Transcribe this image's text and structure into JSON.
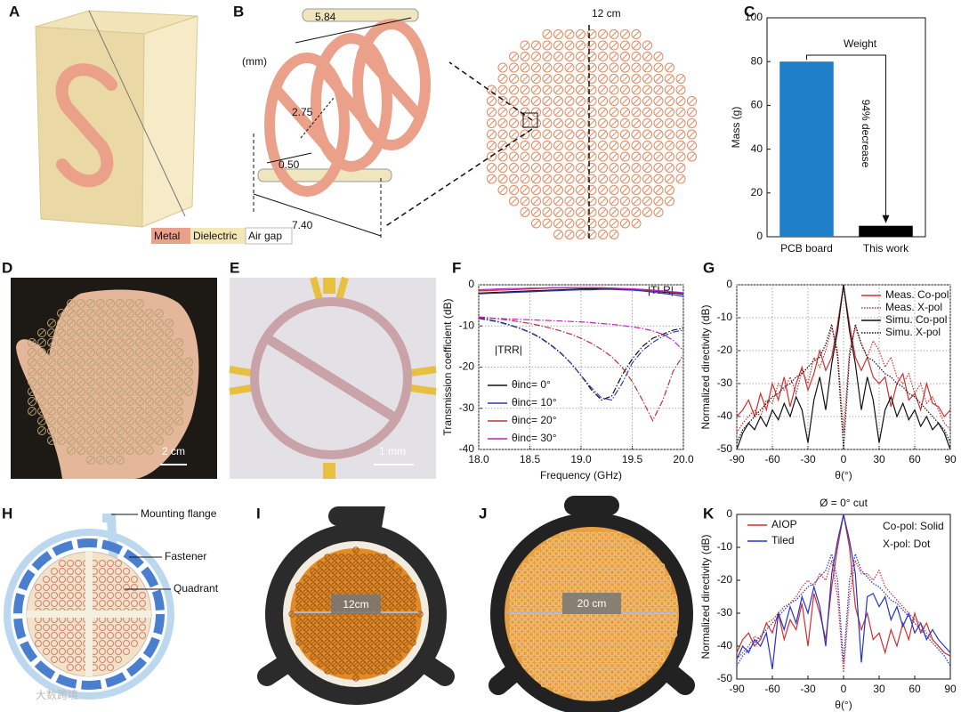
{
  "panel_labels": [
    "A",
    "B",
    "C",
    "D",
    "E",
    "F",
    "G",
    "H",
    "I",
    "J",
    "K"
  ],
  "panel_b": {
    "unit": "(mm)",
    "dims": [
      "5.84",
      "2.75",
      "0.50",
      "7.40"
    ]
  },
  "array_size": "12 cm",
  "materials": [
    "Metal",
    "Dielectric",
    "Air gap"
  ],
  "scale_bars": [
    "2 cm",
    "1 mm"
  ],
  "callouts": [
    "Mounting flange",
    "Fastener",
    "Quadrant"
  ],
  "photo_labels": [
    "12cm",
    "20 cm"
  ],
  "watermark": "大数跨境",
  "chart_data": [
    {
      "type": "bar",
      "categories": [
        "PCB board",
        "This work"
      ],
      "values": [
        80,
        5
      ],
      "colors": [
        "#1f7fc8",
        "#000000"
      ],
      "ylabel": "Mass (g)",
      "ylim": [
        0,
        100
      ],
      "yticks": [
        0,
        20,
        40,
        60,
        80,
        100
      ],
      "grid": false,
      "annotations": [
        "Weight",
        "94% decrease"
      ]
    },
    {
      "type": "line",
      "xlabel": "Frequency (GHz)",
      "ylabel": "Transmission coefficient (dB)",
      "x": [
        18,
        18.1,
        18.2,
        18.3,
        18.4,
        18.5,
        18.6,
        18.7,
        18.8,
        18.9,
        19,
        19.1,
        19.2,
        19.3,
        19.4,
        19.5,
        19.6,
        19.7,
        19.8,
        19.9,
        20
      ],
      "xlim": [
        18,
        20
      ],
      "xticks": [
        {
          "value": 18,
          "label": "18.0"
        },
        {
          "value": 18.5,
          "label": "18.5"
        },
        {
          "value": 19,
          "label": "19.0"
        },
        {
          "value": 19.5,
          "label": "19.5"
        },
        {
          "value": 20,
          "label": "20.0"
        }
      ],
      "ylim": [
        -40,
        0
      ],
      "yticks": [
        0,
        -10,
        -20,
        -30,
        -40
      ],
      "grid": true,
      "legend": "lower-left",
      "annotations": [
        "|TLR|",
        "|TRR|"
      ],
      "series": [
        {
          "name": "θinc= 0°",
          "color": "#111111",
          "style": "solid",
          "values": [
            -2.0,
            -1.9,
            -1.8,
            -1.7,
            -1.6,
            -1.5,
            -1.4,
            -1.3,
            -1.2,
            -1.1,
            -1.0,
            -1.0,
            -0.9,
            -0.9,
            -1.0,
            -1.1,
            -1.3,
            -1.5,
            -1.8,
            -2.0,
            -2.3
          ]
        },
        {
          "name": "θinc= 10°",
          "color": "#2a3bb0",
          "style": "solid",
          "values": [
            -2.2,
            -2.1,
            -2.0,
            -1.9,
            -1.8,
            -1.7,
            -1.6,
            -1.5,
            -1.4,
            -1.3,
            -1.2,
            -1.2,
            -1.1,
            -1.1,
            -1.2,
            -1.3,
            -1.5,
            -1.8,
            -2.1,
            -2.4,
            -2.8
          ]
        },
        {
          "name": "θinc= 20°",
          "color": "#c0303a",
          "style": "solid",
          "values": [
            -1.5,
            -1.4,
            -1.3,
            -1.2,
            -1.1,
            -1.0,
            -0.9,
            -0.8,
            -0.8,
            -0.7,
            -0.7,
            -0.7,
            -0.7,
            -0.8,
            -0.9,
            -1.0,
            -1.2,
            -1.4,
            -1.6,
            -1.8,
            -2.0
          ]
        },
        {
          "name": "θinc= 30°",
          "color": "#c020c0",
          "style": "solid",
          "values": [
            -1.2,
            -1.1,
            -1.0,
            -0.9,
            -0.9,
            -0.8,
            -0.8,
            -0.7,
            -0.7,
            -0.7,
            -0.7,
            -0.7,
            -0.8,
            -0.8,
            -0.9,
            -1.0,
            -1.1,
            -1.3,
            -1.5,
            -1.7,
            -1.9
          ]
        },
        {
          "color": "#111111",
          "style": "dashdot",
          "values": [
            -8,
            -8.5,
            -9,
            -9.7,
            -10.5,
            -11.5,
            -12.8,
            -14.5,
            -16.5,
            -19,
            -22,
            -25.5,
            -28,
            -27,
            -22,
            -18,
            -15,
            -13,
            -12,
            -11,
            -10.5
          ]
        },
        {
          "color": "#2a3bb0",
          "style": "dashdot",
          "values": [
            -8.2,
            -8.6,
            -9.1,
            -9.8,
            -10.6,
            -11.6,
            -12.9,
            -14.6,
            -16.6,
            -19,
            -22,
            -25,
            -27.5,
            -28,
            -24,
            -19,
            -16,
            -14,
            -12.5,
            -11.5,
            -11
          ]
        },
        {
          "color": "#c0303a",
          "style": "dashdot",
          "values": [
            -7.8,
            -8,
            -8.3,
            -8.6,
            -9,
            -9.4,
            -9.9,
            -10.5,
            -11.2,
            -12,
            -13,
            -14.2,
            -15.7,
            -17.5,
            -20,
            -23.5,
            -28,
            -33,
            -28,
            -21,
            -17
          ]
        },
        {
          "color": "#c020c0",
          "style": "dashdot",
          "values": [
            -8,
            -8.1,
            -8.2,
            -8.3,
            -8.4,
            -8.5,
            -8.6,
            -8.7,
            -8.8,
            -8.9,
            -9,
            -9.2,
            -9.4,
            -9.6,
            -9.9,
            -10.2,
            -10.6,
            -11.2,
            -12,
            -13.5,
            -16
          ]
        }
      ]
    },
    {
      "type": "line",
      "xlabel": "θ(°)",
      "ylabel": "Normalized directivity (dB)",
      "x": [
        -90,
        -85,
        -80,
        -75,
        -70,
        -65,
        -60,
        -55,
        -50,
        -45,
        -40,
        -35,
        -30,
        -25,
        -20,
        -15,
        -10,
        -5,
        0,
        5,
        10,
        15,
        20,
        25,
        30,
        35,
        40,
        45,
        50,
        55,
        60,
        65,
        70,
        75,
        80,
        85,
        90
      ],
      "xlim": [
        -90,
        90
      ],
      "xticks": [
        -90,
        -60,
        -30,
        0,
        30,
        60,
        90
      ],
      "ylim": [
        -50,
        0
      ],
      "yticks": [
        0,
        -10,
        -20,
        -30,
        -40,
        -50
      ],
      "grid": true,
      "legend": "upper-right",
      "annotations": [],
      "series": [
        {
          "name": "Meas. Co-pol",
          "color": "#d03030",
          "style": "solid",
          "values": [
            -40,
            -38,
            -35,
            -40,
            -33,
            -38,
            -30,
            -35,
            -28,
            -37,
            -30,
            -25,
            -32,
            -27,
            -20,
            -26,
            -22,
            -12,
            0,
            -12,
            -22,
            -26,
            -22,
            -28,
            -30,
            -28,
            -37,
            -30,
            -27,
            -35,
            -33,
            -38,
            -30,
            -36,
            -37,
            -40,
            -38
          ]
        },
        {
          "name": "Meas. X-pol",
          "color": "#d03030",
          "style": "dotted",
          "values": [
            -45,
            -42,
            -40,
            -38,
            -40,
            -35,
            -36,
            -30,
            -32,
            -28,
            -33,
            -26,
            -30,
            -22,
            -25,
            -20,
            -13,
            -20,
            -45,
            -20,
            -13,
            -18,
            -22,
            -17,
            -20,
            -25,
            -22,
            -28,
            -30,
            -27,
            -33,
            -30,
            -36,
            -34,
            -38,
            -42,
            -44
          ]
        },
        {
          "name": "Simu. Co-pol",
          "color": "#111111",
          "style": "solid",
          "values": [
            -50,
            -45,
            -42,
            -44,
            -40,
            -43,
            -38,
            -41,
            -36,
            -40,
            -34,
            -38,
            -48,
            -35,
            -28,
            -38,
            -24,
            -14,
            0,
            -14,
            -24,
            -38,
            -28,
            -35,
            -48,
            -38,
            -34,
            -40,
            -36,
            -41,
            -38,
            -43,
            -40,
            -44,
            -42,
            -45,
            -50
          ]
        },
        {
          "name": "Simu. X-pol",
          "color": "#111111",
          "style": "dotted",
          "values": [
            -48,
            -44,
            -42,
            -40,
            -38,
            -36,
            -34,
            -33,
            -31,
            -30,
            -28,
            -27,
            -25,
            -23,
            -22,
            -18,
            -12,
            -22,
            -50,
            -22,
            -12,
            -18,
            -22,
            -23,
            -25,
            -27,
            -28,
            -30,
            -31,
            -33,
            -34,
            -36,
            -38,
            -40,
            -42,
            -44,
            -48
          ]
        }
      ]
    },
    {
      "type": "line",
      "xlabel": "θ(°)",
      "ylabel": "Normalized directivity (dB)",
      "x": [
        -90,
        -85,
        -80,
        -75,
        -70,
        -65,
        -60,
        -55,
        -50,
        -45,
        -40,
        -35,
        -30,
        -25,
        -20,
        -15,
        -10,
        -5,
        0,
        5,
        10,
        15,
        20,
        25,
        30,
        35,
        40,
        45,
        50,
        55,
        60,
        65,
        70,
        75,
        80,
        85,
        90
      ],
      "xlim": [
        -90,
        90
      ],
      "xticks": [
        -90,
        -60,
        -30,
        0,
        30,
        60,
        90
      ],
      "ylim": [
        -50,
        0
      ],
      "yticks": [
        0,
        -10,
        -20,
        -30,
        -40,
        -50
      ],
      "grid": false,
      "legend": "upper-left",
      "annotations": [
        "Ø = 0° cut",
        "Co-pol: Solid",
        "X-pol: Dot"
      ],
      "series": [
        {
          "name": "AIOP",
          "color": "#d03030",
          "style": "solid",
          "values": [
            -42,
            -38,
            -36,
            -40,
            -38,
            -33,
            -36,
            -30,
            -38,
            -32,
            -35,
            -27,
            -40,
            -24,
            -30,
            -38,
            -22,
            -10,
            0,
            -10,
            -28,
            -35,
            -30,
            -38,
            -36,
            -42,
            -35,
            -40,
            -33,
            -38,
            -30,
            -36,
            -33,
            -38,
            -40,
            -42,
            -43
          ]
        },
        {
          "name": "Tiled",
          "color": "#2233cc",
          "style": "solid",
          "values": [
            -44,
            -40,
            -42,
            -38,
            -40,
            -36,
            -47,
            -30,
            -35,
            -28,
            -33,
            -25,
            -30,
            -22,
            -28,
            -40,
            -18,
            -8,
            0,
            -8,
            -18,
            -45,
            -25,
            -24,
            -28,
            -25,
            -32,
            -28,
            -34,
            -30,
            -36,
            -33,
            -38,
            -35,
            -38,
            -40,
            -42
          ]
        },
        {
          "color": "#d03030",
          "style": "dotted",
          "values": [
            -44,
            -42,
            -40,
            -37,
            -38,
            -33,
            -32,
            -30,
            -28,
            -27,
            -25,
            -22,
            -20,
            -22,
            -18,
            -20,
            -14,
            -25,
            -48,
            -25,
            -14,
            -18,
            -18,
            -20,
            -17,
            -22,
            -24,
            -26,
            -28,
            -30,
            -32,
            -33,
            -36,
            -38,
            -40,
            -42,
            -43
          ]
        },
        {
          "color": "#2233cc",
          "style": "dotted",
          "values": [
            -46,
            -43,
            -41,
            -39,
            -37,
            -35,
            -33,
            -31,
            -29,
            -27,
            -26,
            -24,
            -22,
            -21,
            -19,
            -17,
            -12,
            -20,
            -45,
            -20,
            -12,
            -17,
            -19,
            -21,
            -22,
            -24,
            -26,
            -27,
            -29,
            -31,
            -33,
            -35,
            -37,
            -39,
            -41,
            -43,
            -46
          ]
        }
      ]
    }
  ]
}
